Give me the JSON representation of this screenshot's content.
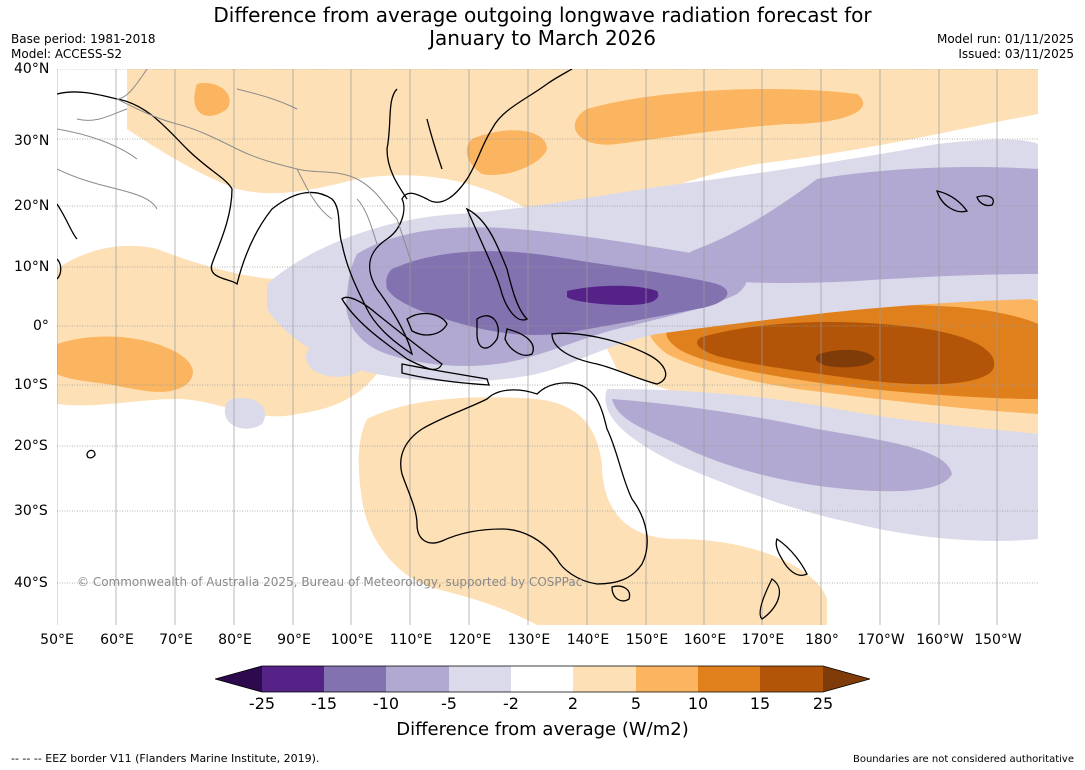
{
  "title": "Difference from average outgoing longwave radiation forecast for January to March 2026",
  "title_lines": [
    "Difference from average outgoing longwave radiation forecast for",
    "January to March 2026"
  ],
  "meta": {
    "base_period": "Base period: 1981-2018",
    "model": "Model: ACCESS-S2",
    "model_run": "Model run: 01/11/2025",
    "issued": "Issued: 03/11/2025"
  },
  "axes": {
    "lat_labels": [
      "40°N",
      "30°N",
      "20°N",
      "10°N",
      "0°",
      "10°S",
      "20°S",
      "30°S",
      "40°S"
    ],
    "lon_labels": [
      "50°E",
      "60°E",
      "70°E",
      "80°E",
      "90°E",
      "100°E",
      "110°E",
      "120°E",
      "130°E",
      "140°E",
      "150°E",
      "160°E",
      "170°E",
      "180°",
      "170°W",
      "160°W",
      "150°W"
    ]
  },
  "copyright": "© Commonwealth of Australia 2025, Bureau of Meteorology, supported by COSPPac",
  "colorbar": {
    "labels": [
      "-25",
      "-15",
      "-10",
      "-5",
      "-2",
      "2",
      "5",
      "10",
      "15",
      "25"
    ],
    "colors": {
      "under": "#2d0a4e",
      "bins": [
        "#552288",
        "#8272b0",
        "#b1a9d2",
        "#dadaea",
        "#ffffff",
        "#fde0b5",
        "#fbb45f",
        "#e0801c",
        "#b35508"
      ],
      "over": "#7f3b08"
    },
    "title": "Difference from average (W/m2)"
  },
  "footer": {
    "eez": "--  --  -- EEZ border V11 (Flanders Marine Institute, 2019).",
    "disclaimer": "Boundaries are not considered authoritative"
  }
}
